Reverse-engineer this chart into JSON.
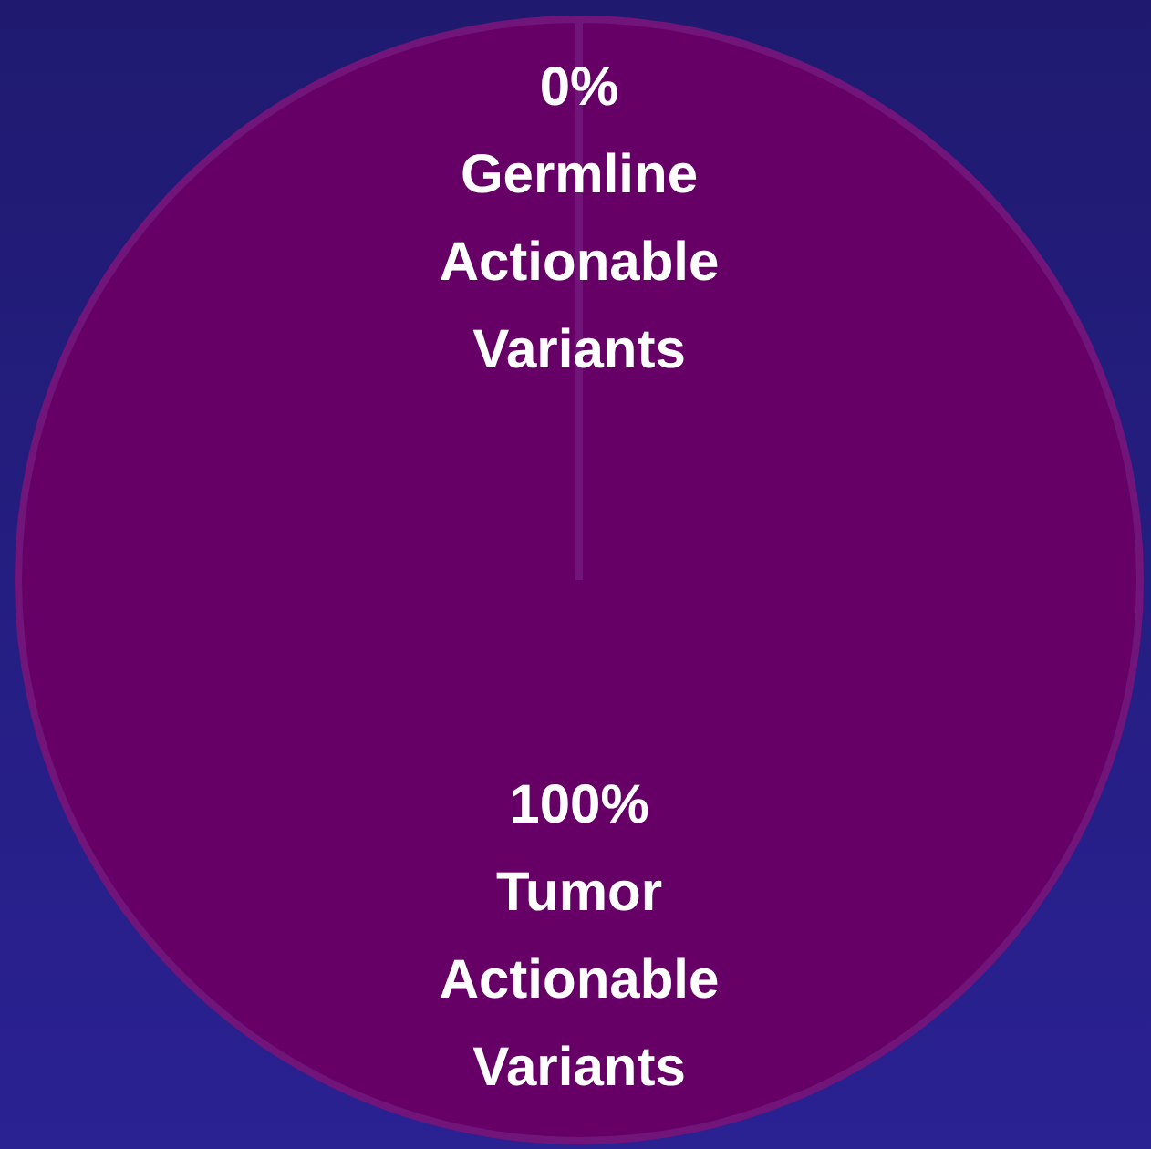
{
  "chart_data": {
    "type": "pie",
    "categories": [
      "Germline Actionable Variants",
      "Tumor Actionable Variants"
    ],
    "values": [
      0,
      100
    ],
    "colors": [
      "#7a1a7a",
      "#660066"
    ],
    "value_labels": [
      "0%",
      "100%"
    ],
    "legend": false
  }
}
